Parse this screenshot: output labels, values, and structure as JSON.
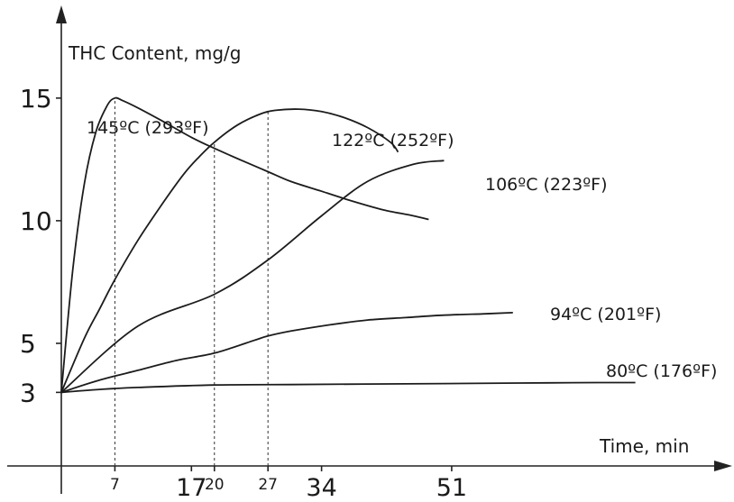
{
  "chart_data": {
    "type": "line",
    "ylabel": "THC Content, mg/g",
    "xlabel": "Time, min",
    "yticks": [
      {
        "value": 3,
        "label": "3"
      },
      {
        "value": 5,
        "label": "5"
      },
      {
        "value": 10,
        "label": "10"
      },
      {
        "value": 15,
        "label": "15"
      }
    ],
    "xticks": [
      {
        "value": 7,
        "label": "7",
        "size": "small"
      },
      {
        "value": 17,
        "label": "17",
        "size": "big"
      },
      {
        "value": 20,
        "label": "20",
        "size": "small"
      },
      {
        "value": 27,
        "label": "27",
        "size": "small"
      },
      {
        "value": 34,
        "label": "34",
        "size": "big"
      },
      {
        "value": 51,
        "label": "51",
        "size": "big"
      }
    ],
    "xlim": [
      0,
      86
    ],
    "ylim": [
      0,
      19
    ],
    "reference_lines_x": [
      7,
      20,
      27
    ],
    "series": [
      {
        "name": "145ºC (293ºF)",
        "points": [
          [
            0,
            3
          ],
          [
            1.5,
            8
          ],
          [
            3,
            11.5
          ],
          [
            4.5,
            13.6
          ],
          [
            6,
            14.7
          ],
          [
            7,
            15
          ],
          [
            8,
            14.9
          ],
          [
            10,
            14.6
          ],
          [
            13,
            14.1
          ],
          [
            17,
            13.4
          ],
          [
            20,
            12.95
          ],
          [
            24,
            12.4
          ],
          [
            27,
            12
          ],
          [
            30,
            11.6
          ],
          [
            34,
            11.2
          ],
          [
            38,
            10.8
          ],
          [
            42,
            10.45
          ],
          [
            46,
            10.2
          ],
          [
            48,
            10.05
          ]
        ]
      },
      {
        "name": "122ºC (252ºF)",
        "points": [
          [
            0,
            3
          ],
          [
            3,
            5.2
          ],
          [
            5,
            6.4
          ],
          [
            7,
            7.6
          ],
          [
            10,
            9.2
          ],
          [
            13,
            10.6
          ],
          [
            16,
            11.9
          ],
          [
            18,
            12.6
          ],
          [
            20,
            13.2
          ],
          [
            23,
            13.9
          ],
          [
            26,
            14.35
          ],
          [
            28,
            14.5
          ],
          [
            31,
            14.55
          ],
          [
            34,
            14.45
          ],
          [
            37,
            14.2
          ],
          [
            40,
            13.8
          ],
          [
            43,
            13.2
          ],
          [
            44,
            12.8
          ]
        ]
      },
      {
        "name": "106ºC (223ºF)",
        "points": [
          [
            0,
            3
          ],
          [
            10,
            5.7
          ],
          [
            20,
            7.0
          ],
          [
            27,
            8.4
          ],
          [
            34,
            10.2
          ],
          [
            40,
            11.6
          ],
          [
            46,
            12.3
          ],
          [
            50,
            12.45
          ]
        ]
      },
      {
        "name": "94ºC (201ºF)",
        "points": [
          [
            0,
            3
          ],
          [
            5,
            3.5
          ],
          [
            10,
            3.9
          ],
          [
            15,
            4.3
          ],
          [
            20,
            4.6
          ],
          [
            25,
            5.1
          ],
          [
            27,
            5.3
          ],
          [
            30,
            5.5
          ],
          [
            35,
            5.75
          ],
          [
            40,
            5.95
          ],
          [
            45,
            6.05
          ],
          [
            50,
            6.15
          ],
          [
            55,
            6.2
          ],
          [
            59,
            6.25
          ]
        ]
      },
      {
        "name": "80ºC (176ºF)",
        "points": [
          [
            0,
            3
          ],
          [
            5,
            3.12
          ],
          [
            10,
            3.2
          ],
          [
            20,
            3.3
          ],
          [
            30,
            3.32
          ],
          [
            40,
            3.34
          ],
          [
            50,
            3.36
          ],
          [
            60,
            3.38
          ],
          [
            70,
            3.4
          ],
          [
            75,
            3.4
          ]
        ]
      }
    ]
  }
}
